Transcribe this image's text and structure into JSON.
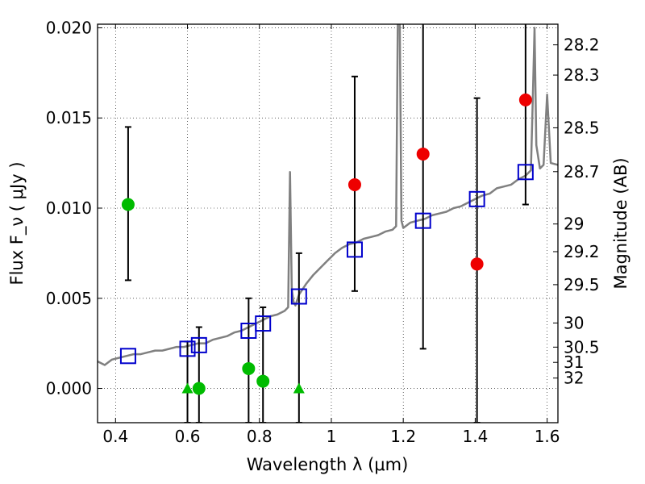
{
  "chart_data": {
    "type": "scatter",
    "xlabel": "Wavelength  λ (μm)",
    "ylabel": "Flux  F_ν  ( μJy )",
    "ylabel_right": "Magnitude (AB)",
    "xlim": [
      0.35,
      1.63
    ],
    "ylim": [
      -0.0019,
      0.0202
    ],
    "grid": true,
    "x_ticks": [
      0.4,
      0.6,
      0.8,
      1.0,
      1.2,
      1.4,
      1.6
    ],
    "x_tick_labels": [
      "0.4",
      "0.6",
      "0.8",
      "1",
      "1.2",
      "1.4",
      "1.6"
    ],
    "y_ticks": [
      0.0,
      0.005,
      0.01,
      0.015,
      0.02
    ],
    "y_tick_labels": [
      "0.000",
      "0.005",
      "0.010",
      "0.015",
      "0.020"
    ],
    "right_ticks": [
      {
        "label": "28.2",
        "mag": 28.2
      },
      {
        "label": "28.3",
        "mag": 28.3
      },
      {
        "label": "28.5",
        "mag": 28.5
      },
      {
        "label": "28.7",
        "mag": 28.7
      },
      {
        "label": "29",
        "mag": 29.0
      },
      {
        "label": "29.2",
        "mag": 29.2
      },
      {
        "label": "29.5",
        "mag": 29.5
      },
      {
        "label": "30",
        "mag": 30.0
      },
      {
        "label": "30.5",
        "mag": 30.5
      },
      {
        "label": "31",
        "mag": 31.0
      },
      {
        "label": "32",
        "mag": 32.0
      }
    ],
    "colors": {
      "model": "#808080",
      "green": "#00bb00",
      "red": "#ee0000",
      "squares": "#0000cc",
      "errorbars": "#000000"
    },
    "model_spectrum": {
      "x": [
        0.35,
        0.37,
        0.39,
        0.41,
        0.43,
        0.45,
        0.47,
        0.49,
        0.51,
        0.53,
        0.55,
        0.57,
        0.59,
        0.61,
        0.63,
        0.65,
        0.67,
        0.69,
        0.71,
        0.73,
        0.75,
        0.77,
        0.79,
        0.81,
        0.83,
        0.85,
        0.87,
        0.88,
        0.885,
        0.89,
        0.895,
        0.9,
        0.91,
        0.93,
        0.95,
        0.97,
        0.99,
        1.0,
        1.01,
        1.03,
        1.05,
        1.07,
        1.09,
        1.11,
        1.13,
        1.15,
        1.17,
        1.18,
        1.185,
        1.19,
        1.195,
        1.2,
        1.22,
        1.24,
        1.26,
        1.28,
        1.3,
        1.32,
        1.34,
        1.36,
        1.38,
        1.4,
        1.42,
        1.44,
        1.46,
        1.48,
        1.5,
        1.52,
        1.54,
        1.555,
        1.56,
        1.565,
        1.57,
        1.58,
        1.59,
        1.6,
        1.61,
        1.63
      ],
      "y": [
        0.0015,
        0.0013,
        0.0016,
        0.0017,
        0.0018,
        0.0019,
        0.0019,
        0.002,
        0.0021,
        0.0021,
        0.0022,
        0.0023,
        0.0023,
        0.0024,
        0.0025,
        0.0025,
        0.0027,
        0.0028,
        0.0029,
        0.0031,
        0.0032,
        0.0034,
        0.0036,
        0.0038,
        0.004,
        0.0041,
        0.0043,
        0.0045,
        0.012,
        0.0055,
        0.0048,
        0.0046,
        0.0052,
        0.0058,
        0.0063,
        0.0067,
        0.0071,
        0.0073,
        0.0075,
        0.0078,
        0.008,
        0.0081,
        0.0083,
        0.0084,
        0.0085,
        0.0087,
        0.0088,
        0.009,
        0.021,
        0.021,
        0.0093,
        0.0089,
        0.0092,
        0.0093,
        0.0094,
        0.0096,
        0.0097,
        0.0098,
        0.01,
        0.0101,
        0.0103,
        0.0105,
        0.0107,
        0.0108,
        0.0111,
        0.0112,
        0.0113,
        0.0116,
        0.0118,
        0.0121,
        0.016,
        0.02,
        0.0135,
        0.0122,
        0.0124,
        0.0163,
        0.0125,
        0.0124
      ]
    },
    "series": [
      {
        "marker": "circle",
        "color": "green",
        "points": [
          {
            "x": 0.435,
            "y": 0.0102,
            "err_low": 0.006,
            "err_high": 0.0145
          },
          {
            "x": 0.632,
            "y": 0.0
          },
          {
            "x": 0.77,
            "y": 0.0011
          },
          {
            "x": 0.81,
            "y": 0.0004
          }
        ]
      },
      {
        "marker": "triangle-up",
        "color": "green",
        "points": [
          {
            "x": 0.6,
            "y": 0.0,
            "err_low": -0.0019,
            "err_high": 0.0026
          },
          {
            "x": 0.91,
            "y": 0.0,
            "err_low": -0.0019,
            "err_high": 0.0075
          }
        ]
      },
      {
        "marker": "circle",
        "color": "red",
        "points": [
          {
            "x": 1.065,
            "y": 0.0113,
            "err_low": 0.0054,
            "err_high": 0.0173
          },
          {
            "x": 1.255,
            "y": 0.013,
            "err_low": 0.0022,
            "err_high": 0.021
          },
          {
            "x": 1.405,
            "y": 0.0069,
            "err_low": -0.0019,
            "err_high": 0.0161
          },
          {
            "x": 1.54,
            "y": 0.016,
            "err_low": 0.0102,
            "err_high": 0.021
          }
        ]
      },
      {
        "marker": "square-open",
        "color": "squares",
        "points": [
          {
            "x": 0.435,
            "y": 0.0018
          },
          {
            "x": 0.6,
            "y": 0.0022
          },
          {
            "x": 0.632,
            "y": 0.0024
          },
          {
            "x": 0.77,
            "y": 0.0032
          },
          {
            "x": 0.81,
            "y": 0.0036
          },
          {
            "x": 0.91,
            "y": 0.0051
          },
          {
            "x": 1.065,
            "y": 0.0077
          },
          {
            "x": 1.255,
            "y": 0.0093
          },
          {
            "x": 1.405,
            "y": 0.0105
          },
          {
            "x": 1.54,
            "y": 0.012
          }
        ]
      }
    ],
    "extra_errorbars": [
      {
        "x": 0.632,
        "low": -0.0019,
        "high": 0.0034
      },
      {
        "x": 0.77,
        "low": -0.0019,
        "high": 0.005
      },
      {
        "x": 0.81,
        "low": -0.0019,
        "high": 0.0045
      }
    ]
  }
}
